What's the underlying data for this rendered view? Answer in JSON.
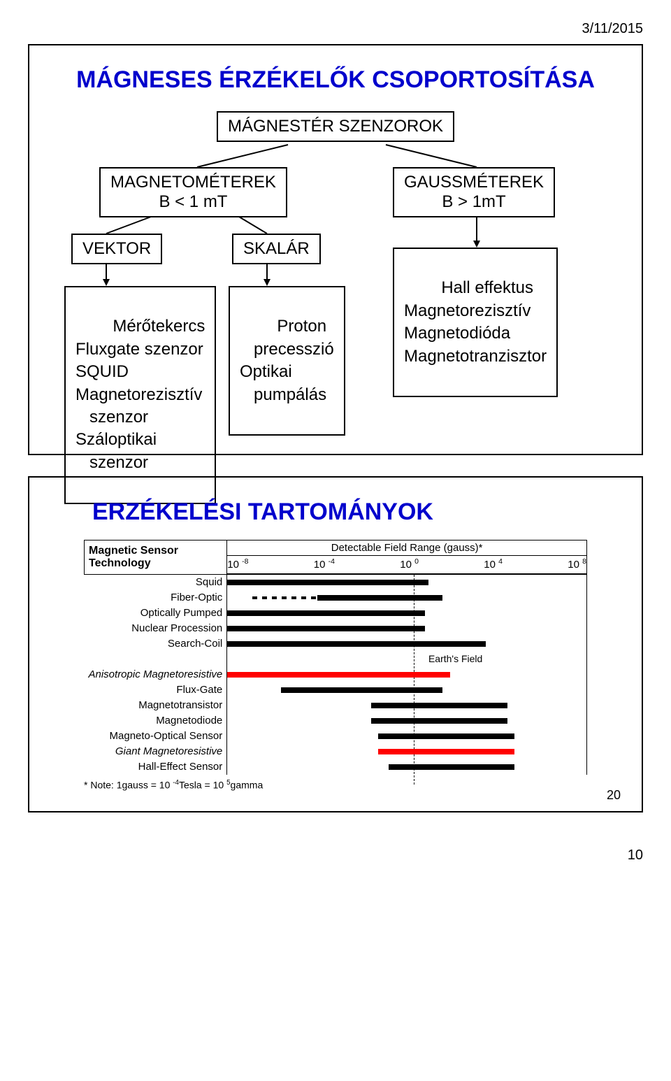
{
  "date": "3/11/2015",
  "footer_page": "10",
  "slide1": {
    "title": "MÁGNESES ÉRZÉKELŐK CSOPORTOSÍTÁSA",
    "root": "MÁGNESTÉR SZENZOROK",
    "left_branch": {
      "line1": "MAGNETOMÉTEREK",
      "line2": "B < 1 mT"
    },
    "right_branch": {
      "line1": "GAUSSMÉTEREK",
      "line2": "B > 1mT"
    },
    "vektor": "VEKTOR",
    "skalar": "SKALÁR",
    "vektor_items": "Mérőtekercs\nFluxgate szenzor\nSQUID\nMagnetorezisztív\n   szenzor\nSzáloptikai\n   szenzor",
    "skalar_items": "Proton\n   precesszió\nOptikai\n   pumpálás",
    "gauss_items": "Hall effektus\nMagnetorezisztív\nMagnetodióda\nMagnetotranzisztor"
  },
  "slide2": {
    "title": "ERZÉKELÉSI TARTOMÁNYOK",
    "pagenum": "20",
    "table_hdr_left": "Magnetic Sensor\nTechnology",
    "table_hdr_right": "Detectable Field Range (gauss)*",
    "ticks": [
      "10 ",
      "10 ",
      "10 ",
      "10 ",
      "10 "
    ],
    "tick_exp": [
      "-8",
      "-4",
      "0",
      "4",
      "8"
    ],
    "rows": [
      {
        "label": "Squid",
        "italic": false,
        "bars": [
          {
            "l": 0,
            "r": 56,
            "cls": ""
          }
        ]
      },
      {
        "label": "Fiber-Optic",
        "italic": false,
        "bars": [
          {
            "l": 7,
            "r": 25,
            "cls": "dash"
          },
          {
            "l": 25,
            "r": 60,
            "cls": ""
          }
        ]
      },
      {
        "label": "Optically Pumped",
        "italic": false,
        "bars": [
          {
            "l": 0,
            "r": 55,
            "cls": ""
          }
        ]
      },
      {
        "label": "Nuclear Procession",
        "italic": false,
        "bars": [
          {
            "l": 0,
            "r": 55,
            "cls": ""
          }
        ]
      },
      {
        "label": "Search-Coil",
        "italic": false,
        "bars": [
          {
            "l": 0,
            "r": 72,
            "cls": ""
          }
        ]
      },
      {
        "label": "",
        "italic": false,
        "earth": "Earth's Field",
        "bars": []
      },
      {
        "label": "Anisotropic Magnetoresistive",
        "italic": true,
        "bars": [
          {
            "l": 0,
            "r": 62,
            "cls": "red"
          }
        ]
      },
      {
        "label": "Flux-Gate",
        "italic": false,
        "bars": [
          {
            "l": 15,
            "r": 60,
            "cls": ""
          }
        ]
      },
      {
        "label": "Magnetotransistor",
        "italic": false,
        "bars": [
          {
            "l": 40,
            "r": 78,
            "cls": ""
          }
        ]
      },
      {
        "label": "Magnetodiode",
        "italic": false,
        "bars": [
          {
            "l": 40,
            "r": 78,
            "cls": ""
          }
        ]
      },
      {
        "label": "Magneto-Optical Sensor",
        "italic": false,
        "bars": [
          {
            "l": 42,
            "r": 80,
            "cls": ""
          }
        ]
      },
      {
        "label": "Giant Magnetoresistive",
        "italic": true,
        "bars": [
          {
            "l": 42,
            "r": 80,
            "cls": "red"
          }
        ]
      },
      {
        "label": "Hall-Effect Sensor",
        "italic": false,
        "bars": [
          {
            "l": 45,
            "r": 80,
            "cls": ""
          }
        ]
      }
    ],
    "note_prefix": "* Note: 1gauss = 10 ",
    "note_exp1": "-4",
    "note_mid": "Tesla = 10 ",
    "note_exp2": "5",
    "note_suffix": "gamma"
  }
}
